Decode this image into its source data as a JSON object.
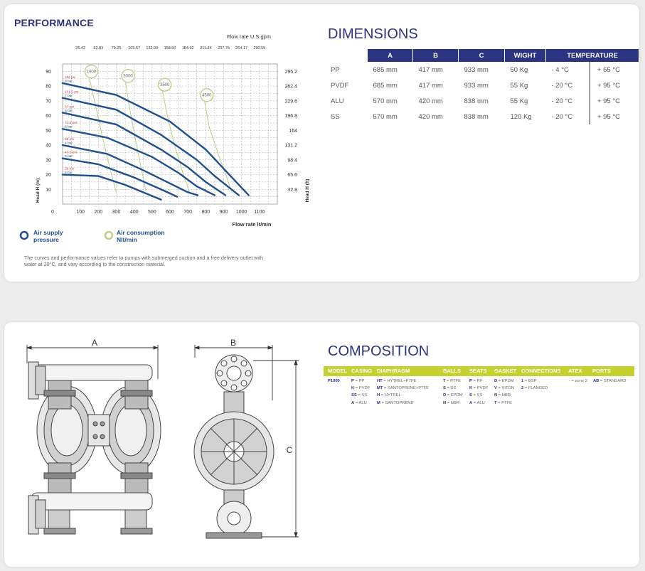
{
  "performance": {
    "title": "PERFORMANCE",
    "top_axis_title": "Flow rate U.S.gpm",
    "top_ticks": [
      "26.42",
      "52.83",
      "79.25",
      "105.67",
      "132.09",
      "158.50",
      "184.92",
      "211.34",
      "237.75",
      "264.17",
      "290.59"
    ],
    "bottom_axis_title": "Flow rate  lt/min",
    "bottom_ticks": [
      "0",
      "100",
      "200",
      "300",
      "400",
      "500",
      "600",
      "700",
      "800",
      "900",
      "1000",
      "1100"
    ],
    "left_axis_title": "Head H (m)",
    "left_ticks": [
      "90",
      "80",
      "70",
      "60",
      "50",
      "40",
      "30",
      "20",
      "10"
    ],
    "right_axis_title": "Head H (ft)",
    "right_ticks": [
      "295.2",
      "262.4",
      "229.6",
      "196.8",
      "164",
      "131.2",
      "98.4",
      "65.6",
      "32.8"
    ],
    "pressure_labels": [
      {
        "psi": "116 psi",
        "bar": "8 bar"
      },
      {
        "psi": "101.5 psi",
        "bar": "7 bar"
      },
      {
        "psi": "87 psi",
        "bar": "6 bar"
      },
      {
        "psi": "72.5 psi",
        "bar": "5 bar"
      },
      {
        "psi": "58 psi",
        "bar": "4 bar"
      },
      {
        "psi": "43.5 psi",
        "bar": "3 bar"
      },
      {
        "psi": "29 psi",
        "bar": "2 bar"
      }
    ],
    "consumption_labels": [
      "1900",
      "3000",
      "3500",
      "4500"
    ],
    "legend": {
      "air_supply_line1": "Air supply",
      "air_supply_line2": "pressure",
      "air_consumption_line1": "Air consumption",
      "air_consumption_line2": "Nlt/min"
    },
    "note_line1": "The curves and performance values refer to pumps with submerged suction and a free delivery outlet with",
    "note_line2": "water at 20°C, and vary according to the construction material.",
    "colors": {
      "curve": "#1f4f8c",
      "consumption": "#b9cf8a",
      "psi": "#d03a3a"
    }
  },
  "chart_data": {
    "type": "line",
    "xlabel": "Flow rate  lt/min",
    "ylabel": "Head H (m)",
    "xlim": [
      0,
      1200
    ],
    "ylim": [
      0,
      95
    ],
    "series": [
      {
        "name": "8 bar",
        "x": [
          0,
          300,
          600,
          800,
          900,
          1040
        ],
        "y": [
          82,
          74,
          56,
          37,
          24,
          6
        ]
      },
      {
        "name": "7 bar",
        "x": [
          0,
          300,
          550,
          750,
          850,
          985
        ],
        "y": [
          72,
          64,
          47,
          30,
          19,
          6
        ]
      },
      {
        "name": "6 bar",
        "x": [
          0,
          300,
          550,
          700,
          800,
          910
        ],
        "y": [
          62,
          54,
          37,
          25,
          15,
          6
        ]
      },
      {
        "name": "5 bar",
        "x": [
          0,
          250,
          500,
          650,
          750,
          850
        ],
        "y": [
          51,
          45,
          32,
          21,
          12,
          6
        ]
      },
      {
        "name": "4 bar",
        "x": [
          0,
          250,
          450,
          600,
          700,
          755
        ],
        "y": [
          40,
          34,
          23,
          14,
          8,
          6
        ]
      },
      {
        "name": "3 bar",
        "x": [
          0,
          200,
          400,
          550,
          640
        ],
        "y": [
          31,
          27,
          18,
          10,
          5
        ]
      },
      {
        "name": "2 bar",
        "x": [
          0,
          200,
          350,
          450,
          550
        ],
        "y": [
          20,
          19,
          13,
          8,
          3
        ]
      }
    ],
    "consumption_curves": [
      {
        "name": "1900",
        "x": [
          145,
          175,
          220,
          265,
          300
        ],
        "y": [
          88,
          72,
          47,
          24,
          8
        ]
      },
      {
        "name": "3000",
        "x": [
          350,
          370,
          405,
          440,
          465
        ],
        "y": [
          85,
          68,
          45,
          24,
          9
        ]
      },
      {
        "name": "3500",
        "x": [
          555,
          585,
          630,
          675,
          710
        ],
        "y": [
          79,
          60,
          38,
          20,
          8
        ]
      },
      {
        "name": "4500",
        "x": [
          790,
          820,
          875,
          915,
          945
        ],
        "y": [
          72,
          52,
          32,
          19,
          8
        ]
      }
    ],
    "grid": true,
    "legend": "bottom-left"
  },
  "dimensions": {
    "title": "DIMENSIONS",
    "headers": [
      "A",
      "B",
      "C",
      "WIGHT",
      "TEMPERATURE"
    ],
    "rows": [
      {
        "material": "PP",
        "a": "685 mm",
        "b": "417 mm",
        "c": "933 mm",
        "weight": "50 Kg",
        "tmin": "- 4 °C",
        "tmax": "+ 65 °C"
      },
      {
        "material": "PVDF",
        "a": "685 mm",
        "b": "417 mm",
        "c": "933 mm",
        "weight": "55 Kg",
        "tmin": "- 20 °C",
        "tmax": "+ 95 °C"
      },
      {
        "material": "ALU",
        "a": "570 mm",
        "b": "420 mm",
        "c": "838 mm",
        "weight": "55 Kg",
        "tmin": "- 20 °C",
        "tmax": "+ 95 °C"
      },
      {
        "material": "SS",
        "a": "570 mm",
        "b": "420 mm",
        "c": "838 mm",
        "weight": "120 Kg",
        "tmin": "- 20 °C",
        "tmax": "+ 95 °C"
      }
    ]
  },
  "drawing": {
    "label_a": "A",
    "label_b": "B",
    "label_c": "C"
  },
  "composition": {
    "title": "COMPOSITION",
    "headers": [
      "MODEL",
      "CASING",
      "DIAPHRAGM",
      "BALLS",
      "SEATS",
      "GASKET",
      "CONNECTIONS",
      "ATEX",
      "PORTS"
    ],
    "model": "P1000",
    "casing": [
      {
        "code": "P",
        "label": "PP"
      },
      {
        "code": "K",
        "label": "PVDF"
      },
      {
        "code": "SS",
        "label": "SS"
      },
      {
        "code": "A",
        "label": "ALU"
      }
    ],
    "diaphragm": [
      {
        "code": "HT",
        "label": "HYTREL+PTFE"
      },
      {
        "code": "MT",
        "label": "SANTOPRENE+PTFE"
      },
      {
        "code": "H",
        "label": "HYTREL"
      },
      {
        "code": "M",
        "label": "SANTOPRENE"
      }
    ],
    "balls": [
      {
        "code": "T",
        "label": "PTFE"
      },
      {
        "code": "S",
        "label": "SS"
      },
      {
        "code": "D",
        "label": "EPDM"
      },
      {
        "code": "N",
        "label": "NBR"
      }
    ],
    "seats": [
      {
        "code": "P",
        "label": "PP"
      },
      {
        "code": "K",
        "label": "PVDF"
      },
      {
        "code": "S",
        "label": "SS"
      },
      {
        "code": "A",
        "label": "ALU"
      }
    ],
    "gasket": [
      {
        "code": "D",
        "label": "EPDM"
      },
      {
        "code": "V",
        "label": "VITON"
      },
      {
        "code": "N",
        "label": "NBR"
      },
      {
        "code": "T",
        "label": "PTFE"
      }
    ],
    "connections": [
      {
        "code": "1",
        "label": "BSP"
      },
      {
        "code": "2",
        "label": "FLANGED"
      }
    ],
    "atex": "- = zone 2",
    "ports": {
      "code": "AB",
      "label": "STANDARD"
    }
  }
}
